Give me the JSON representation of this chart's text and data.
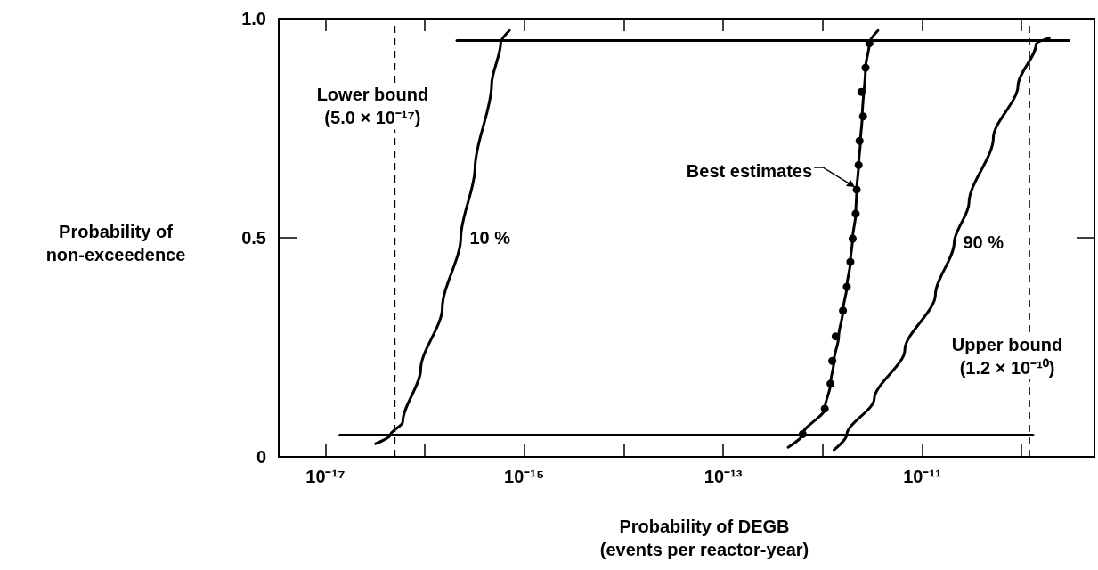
{
  "chart_data": {
    "type": "line",
    "xlabel": "Probability of DEGB\n(events per reactor-year)",
    "ylabel": "Probability of\nnon-exceedence",
    "log": "x",
    "xlim": [
      3.4e-18,
      5.4e-10
    ],
    "xticks": [
      {
        "value": 1e-17,
        "label": "10⁻¹⁷"
      },
      {
        "value": 1e-16,
        "label": null
      },
      {
        "value": 1e-15,
        "label": "10⁻¹⁵"
      },
      {
        "value": 1e-14,
        "label": null
      },
      {
        "value": 1e-13,
        "label": "10⁻¹³"
      },
      {
        "value": 1e-12,
        "label": null
      },
      {
        "value": 1e-11,
        "label": "10⁻¹¹"
      },
      {
        "value": 1e-10,
        "label": null
      }
    ],
    "ylim": [
      0,
      1
    ],
    "yticks": [
      0,
      0.5,
      {
        "value": 1,
        "label": "1.0"
      }
    ],
    "grid": false,
    "series": [
      {
        "name": "10 %",
        "color": "#000000",
        "marker": "none",
        "x": [
          3.2e-17,
          4.5e-17,
          6e-17,
          9.1e-17,
          1.5e-16,
          2.3e-16,
          3.2e-16,
          4.7e-16,
          5.8e-16,
          7.1e-16
        ],
        "values": [
          0.03,
          0.05,
          0.08,
          0.2,
          0.34,
          0.5,
          0.66,
          0.85,
          0.945,
          0.973
        ]
      },
      {
        "color": "#000000",
        "marker": "none",
        "x": [
          4.5e-13,
          6.3e-13,
          1.05e-12,
          1.2e-12,
          1.3e-12,
          1.45e-12,
          1.6e-12,
          1.75e-12,
          1.9e-12,
          2e-12,
          2.15e-12,
          2.2e-12,
          2.3e-12,
          2.4e-12,
          2.5e-12,
          2.7e-12,
          2.95e-12,
          3.6e-12
        ],
        "values": [
          0.022,
          0.052,
          0.11,
          0.167,
          0.219,
          0.275,
          0.334,
          0.388,
          0.445,
          0.498,
          0.555,
          0.61,
          0.666,
          0.721,
          0.777,
          0.888,
          0.944,
          0.973
        ]
      },
      {
        "type": "scatter",
        "color": "#000000",
        "marker": "circle",
        "x": [
          6.3e-13,
          1.05e-12,
          1.2e-12,
          1.25e-12,
          1.35e-12,
          1.6e-12,
          1.75e-12,
          1.9e-12,
          2e-12,
          2.15e-12,
          2.2e-12,
          2.3e-12,
          2.35e-12,
          2.55e-12,
          2.45e-12,
          2.7e-12,
          2.95e-12
        ],
        "values": [
          0.052,
          0.11,
          0.167,
          0.219,
          0.275,
          0.334,
          0.388,
          0.445,
          0.498,
          0.555,
          0.61,
          0.666,
          0.721,
          0.777,
          0.833,
          0.888,
          0.944
        ]
      },
      {
        "name": "90 %",
        "color": "#000000",
        "marker": "none",
        "x": [
          1.3e-12,
          1.75e-12,
          3.3e-12,
          6.7e-12,
          1.36e-11,
          2.1e-11,
          2.96e-11,
          5.2e-11,
          9.2e-11,
          1.4e-10,
          1.9e-10
        ],
        "values": [
          0.016,
          0.051,
          0.132,
          0.244,
          0.37,
          0.489,
          0.58,
          0.728,
          0.847,
          0.942,
          0.956
        ]
      },
      {
        "color": "#000000",
        "marker": "none",
        "x": [
          2.1e-16,
          3e-10
        ],
        "values": [
          0.95,
          0.95
        ]
      },
      {
        "color": "#000000",
        "marker": "none",
        "x": [
          1.4e-17,
          1.3e-10
        ],
        "values": [
          0.05,
          0.05
        ]
      }
    ],
    "ref_lines": [
      {
        "axis": "x",
        "value": 5e-17,
        "label": "Lower bound\n(5.0 × 10⁻¹⁷)",
        "color": "#000000",
        "line_style": "dashed"
      },
      {
        "axis": "x",
        "value": 1.2e-10,
        "label": "Upper bound\n(1.2 × 10⁻¹⁰)",
        "color": "#000000",
        "line_style": "dashed"
      }
    ],
    "annotations": [
      {
        "text": "Best estimates",
        "x": 2.2e-12,
        "y": 0.61
      }
    ]
  }
}
